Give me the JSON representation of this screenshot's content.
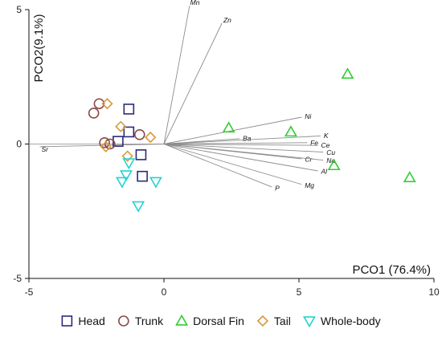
{
  "chart_data": {
    "type": "scatter",
    "xlabel": "PCO1 (76.4%)",
    "ylabel": "PCO2(9.1%)",
    "xlim": [
      -5,
      10
    ],
    "ylim": [
      -5,
      5
    ],
    "xticks": [
      -5,
      0,
      5,
      10
    ],
    "yticks": [
      -5,
      0,
      5
    ],
    "grid": false,
    "legend": "bottom",
    "series": [
      {
        "name": "Head",
        "marker": "square",
        "color": "#2b2b7a",
        "points": [
          [
            -1.3,
            1.3
          ],
          [
            -1.3,
            0.45
          ],
          [
            -1.7,
            0.1
          ],
          [
            -0.85,
            -0.4
          ],
          [
            -0.8,
            -1.2
          ]
        ]
      },
      {
        "name": "Trunk",
        "marker": "circle",
        "color": "#8b4a4a",
        "points": [
          [
            -2.6,
            1.15
          ],
          [
            -2.4,
            1.5
          ],
          [
            -2.2,
            0.05
          ],
          [
            -2.0,
            0.0
          ],
          [
            -0.9,
            0.35
          ]
        ]
      },
      {
        "name": "Dorsal Fin",
        "marker": "triangle-up",
        "color": "#33cc33",
        "points": [
          [
            6.8,
            2.6
          ],
          [
            2.4,
            0.6
          ],
          [
            4.7,
            0.45
          ],
          [
            6.3,
            -0.8
          ],
          [
            9.1,
            -1.25
          ]
        ]
      },
      {
        "name": "Tail",
        "marker": "diamond",
        "color": "#d99a3a",
        "points": [
          [
            -2.1,
            1.5
          ],
          [
            -1.6,
            0.65
          ],
          [
            -2.15,
            -0.1
          ],
          [
            -0.5,
            0.25
          ],
          [
            -1.35,
            -0.45
          ]
        ]
      },
      {
        "name": "Whole-body",
        "marker": "triangle-down",
        "color": "#22d3d3",
        "points": [
          [
            -1.3,
            -0.7
          ],
          [
            -1.4,
            -1.15
          ],
          [
            -1.55,
            -1.4
          ],
          [
            -0.3,
            -1.4
          ],
          [
            -0.95,
            -2.3
          ]
        ]
      }
    ],
    "vectors": [
      {
        "label": "Mn",
        "x": 0.95,
        "y": 5.15
      },
      {
        "label": "Zn",
        "x": 2.15,
        "y": 4.5
      },
      {
        "label": "Ni",
        "x": 5.1,
        "y": 1.0
      },
      {
        "label": "Ba",
        "x": 2.8,
        "y": 0.2
      },
      {
        "label": "K",
        "x": 5.8,
        "y": 0.3
      },
      {
        "label": "Fe",
        "x": 5.3,
        "y": 0.05
      },
      {
        "label": "Ce",
        "x": 5.7,
        "y": -0.05
      },
      {
        "label": "Cu",
        "x": 5.9,
        "y": -0.3
      },
      {
        "label": "Cr",
        "x": 5.1,
        "y": -0.55
      },
      {
        "label": "Na",
        "x": 5.9,
        "y": -0.6
      },
      {
        "label": "Al",
        "x": 5.7,
        "y": -1.0
      },
      {
        "label": "Mg",
        "x": 5.1,
        "y": -1.5
      },
      {
        "label": "P",
        "x": 4.0,
        "y": -1.6
      },
      {
        "label": "Sr",
        "x": -4.6,
        "y": -0.1
      }
    ]
  }
}
